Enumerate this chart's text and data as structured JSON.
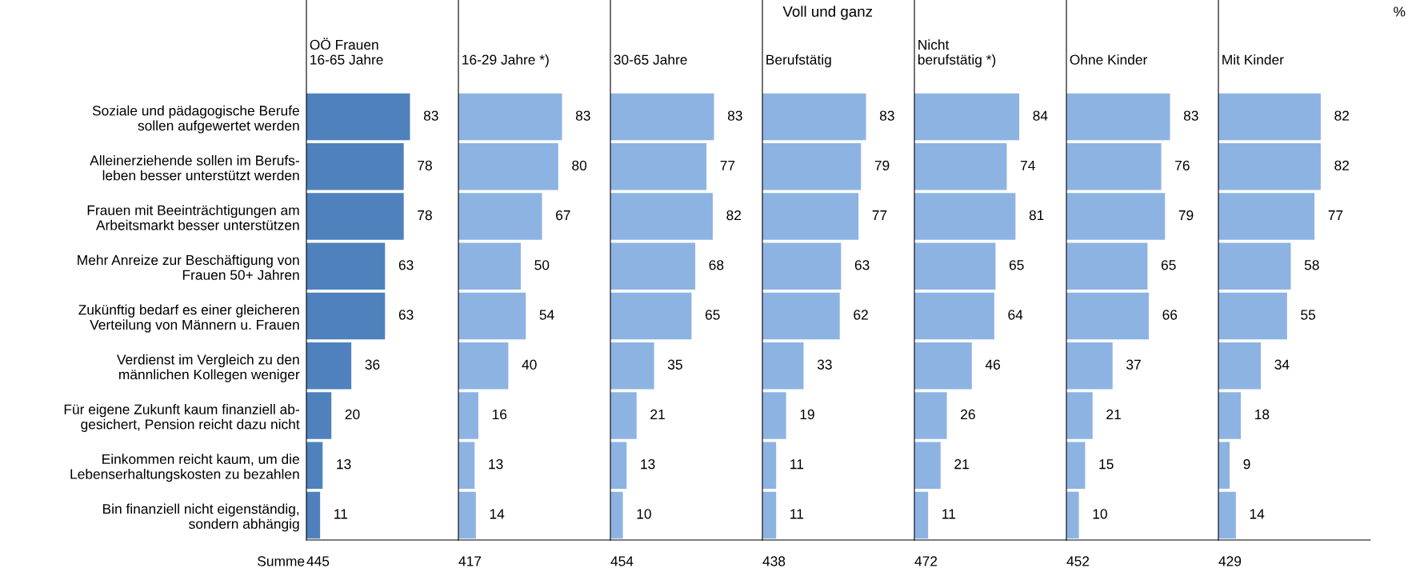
{
  "chart_data": [
    {
      "type": "bar",
      "orientation": "horizontal",
      "subtitle": "OÖ Frauen\n16-65 Jahre",
      "categories": [
        "Soziale und pädagogische Berufe\nsollen aufgewertet werden",
        "Alleinerziehende sollen im Berufs-\nleben besser unterstützt werden",
        "Frauen mit Beeinträchtigungen am\nArbeitsmarkt besser unterstützen",
        "Mehr Anreize zur Beschäftigung von\nFrauen 50+ Jahren",
        "Zukünftig bedarf es einer gleicheren\nVerteilung von Männern u. Frauen",
        "Verdienst im Vergleich zu den\nmännlichen Kollegen weniger",
        "Für eigene Zukunft kaum finanziell ab-\ngesichert, Pension reicht dazu nicht",
        "Einkommen reicht kaum, um die\nLebenserhaltungskosten zu bezahlen",
        "Bin finanziell nicht eigenständig,\nsondern abhängig"
      ],
      "values": [
        83,
        78,
        78,
        63,
        63,
        36,
        20,
        13,
        11
      ],
      "color": "#4f81bd",
      "data_labels": true,
      "tick_labels": "y",
      "annotations": [
        "445",
        "Summe",
        "%"
      ]
    },
    {
      "type": "bar",
      "orientation": "horizontal",
      "subtitle": "16-29 Jahre *)",
      "categories": [
        null,
        null,
        null,
        null,
        null,
        null,
        null,
        null,
        null
      ],
      "values": [
        83,
        80,
        67,
        50,
        54,
        40,
        16,
        13,
        14
      ],
      "color": "#8db3e2",
      "data_labels": true,
      "tick_labels": false,
      "annotations": [
        "417"
      ]
    },
    {
      "type": "bar",
      "orientation": "horizontal",
      "subtitle": "30-65 Jahre",
      "categories": [
        null,
        null,
        null,
        null,
        null,
        null,
        null,
        null,
        null
      ],
      "values": [
        83,
        77,
        82,
        68,
        65,
        35,
        21,
        13,
        10
      ],
      "color": "#8db3e2",
      "data_labels": true,
      "tick_labels": false,
      "annotations": [
        "454"
      ]
    },
    {
      "type": "bar",
      "orientation": "horizontal",
      "title": "Voll und ganz",
      "subtitle": "Berufstätig",
      "categories": [
        null,
        null,
        null,
        null,
        null,
        null,
        null,
        null,
        null
      ],
      "values": [
        83,
        79,
        77,
        63,
        62,
        33,
        19,
        11,
        11
      ],
      "color": "#8db3e2",
      "data_labels": true,
      "tick_labels": false,
      "annotations": [
        "438"
      ]
    },
    {
      "type": "bar",
      "orientation": "horizontal",
      "subtitle": "Nicht\nberufstätig *)",
      "categories": [
        null,
        null,
        null,
        null,
        null,
        null,
        null,
        null,
        null
      ],
      "values": [
        84,
        74,
        81,
        65,
        64,
        46,
        26,
        21,
        11
      ],
      "color": "#8db3e2",
      "data_labels": true,
      "tick_labels": false,
      "annotations": [
        "472"
      ]
    },
    {
      "type": "bar",
      "orientation": "horizontal",
      "subtitle": "Ohne Kinder",
      "categories": [
        null,
        null,
        null,
        null,
        null,
        null,
        null,
        null,
        null
      ],
      "values": [
        83,
        76,
        79,
        65,
        66,
        37,
        21,
        15,
        10
      ],
      "color": "#8db3e2",
      "data_labels": true,
      "tick_labels": false,
      "annotations": [
        "452"
      ]
    },
    {
      "type": "bar",
      "orientation": "horizontal",
      "subtitle": "Mit Kinder",
      "categories": [
        null,
        null,
        null,
        null,
        null,
        null,
        null,
        null,
        null
      ],
      "values": [
        82,
        82,
        77,
        58,
        55,
        34,
        18,
        9,
        14
      ],
      "color": "#8db3e2",
      "data_labels": true,
      "tick_labels": false,
      "annotations": [
        "429"
      ]
    }
  ]
}
